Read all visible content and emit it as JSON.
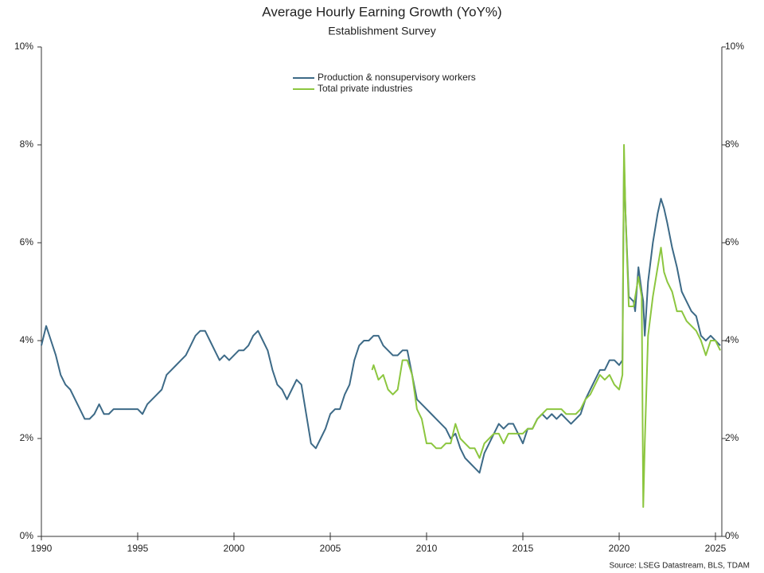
{
  "chart_data": {
    "type": "line",
    "title": "Average Hourly Earning Growth (YoY%)",
    "subtitle": "Establishment Survey",
    "source": "Source: LSEG Datastream, BLS, TDAM",
    "legend": "top-center",
    "xlim": [
      1990,
      2025.33
    ],
    "xticks": [
      1990,
      1995,
      2000,
      2005,
      2010,
      2015,
      2020,
      2025
    ],
    "ylim": [
      0,
      10
    ],
    "yticks": [
      {
        "value": 0,
        "label": "0%"
      },
      {
        "value": 2,
        "label": "2%"
      },
      {
        "value": 4,
        "label": "4%"
      },
      {
        "value": 6,
        "label": "6%"
      },
      {
        "value": 8,
        "label": "8%"
      },
      {
        "value": 10,
        "label": "10%"
      }
    ],
    "y2lim": [
      0,
      10
    ],
    "y2ticks": [
      {
        "value": 0,
        "label": "0%"
      },
      {
        "value": 2,
        "label": "2%"
      },
      {
        "value": 4,
        "label": "4%"
      },
      {
        "value": 6,
        "label": "6%"
      },
      {
        "value": 8,
        "label": "8%"
      },
      {
        "value": 10,
        "label": "10%"
      }
    ],
    "series": [
      {
        "name": "Production & nonsupervisory workers",
        "color": "#3d6a87",
        "x": [
          1990.0,
          1990.25,
          1990.5,
          1990.75,
          1991.0,
          1991.25,
          1991.5,
          1991.75,
          1992.0,
          1992.25,
          1992.5,
          1992.75,
          1993.0,
          1993.25,
          1993.5,
          1993.75,
          1994.0,
          1994.25,
          1994.5,
          1994.75,
          1995.0,
          1995.25,
          1995.5,
          1995.75,
          1996.0,
          1996.25,
          1996.5,
          1996.75,
          1997.0,
          1997.25,
          1997.5,
          1997.75,
          1998.0,
          1998.25,
          1998.5,
          1998.75,
          1999.0,
          1999.25,
          1999.5,
          1999.75,
          2000.0,
          2000.25,
          2000.5,
          2000.75,
          2001.0,
          2001.25,
          2001.5,
          2001.75,
          2002.0,
          2002.25,
          2002.5,
          2002.75,
          2003.0,
          2003.25,
          2003.5,
          2003.75,
          2004.0,
          2004.25,
          2004.5,
          2004.75,
          2005.0,
          2005.25,
          2005.5,
          2005.75,
          2006.0,
          2006.25,
          2006.5,
          2006.75,
          2007.0,
          2007.25,
          2007.5,
          2007.75,
          2008.0,
          2008.25,
          2008.5,
          2008.75,
          2009.0,
          2009.25,
          2009.5,
          2009.75,
          2010.0,
          2010.25,
          2010.5,
          2010.75,
          2011.0,
          2011.25,
          2011.5,
          2011.75,
          2012.0,
          2012.25,
          2012.5,
          2012.75,
          2013.0,
          2013.25,
          2013.5,
          2013.75,
          2014.0,
          2014.25,
          2014.5,
          2014.75,
          2015.0,
          2015.25,
          2015.5,
          2015.75,
          2016.0,
          2016.25,
          2016.5,
          2016.75,
          2017.0,
          2017.25,
          2017.5,
          2017.75,
          2018.0,
          2018.25,
          2018.5,
          2018.75,
          2019.0,
          2019.25,
          2019.5,
          2019.75,
          2020.0,
          2020.17,
          2020.25,
          2020.33,
          2020.5,
          2020.75,
          2020.83,
          2021.0,
          2021.17,
          2021.25,
          2021.33,
          2021.5,
          2021.75,
          2022.0,
          2022.17,
          2022.33,
          2022.5,
          2022.75,
          2023.0,
          2023.25,
          2023.5,
          2023.75,
          2024.0,
          2024.25,
          2024.5,
          2024.75,
          2025.0,
          2025.25
        ],
        "values": [
          3.9,
          4.3,
          4.0,
          3.7,
          3.3,
          3.1,
          3.0,
          2.8,
          2.6,
          2.4,
          2.4,
          2.5,
          2.7,
          2.5,
          2.5,
          2.6,
          2.6,
          2.6,
          2.6,
          2.6,
          2.6,
          2.5,
          2.7,
          2.8,
          2.9,
          3.0,
          3.3,
          3.4,
          3.5,
          3.6,
          3.7,
          3.9,
          4.1,
          4.2,
          4.2,
          4.0,
          3.8,
          3.6,
          3.7,
          3.6,
          3.7,
          3.8,
          3.8,
          3.9,
          4.1,
          4.2,
          4.0,
          3.8,
          3.4,
          3.1,
          3.0,
          2.8,
          3.0,
          3.2,
          3.1,
          2.5,
          1.9,
          1.8,
          2.0,
          2.2,
          2.5,
          2.6,
          2.6,
          2.9,
          3.1,
          3.6,
          3.9,
          4.0,
          4.0,
          4.1,
          4.1,
          3.9,
          3.8,
          3.7,
          3.7,
          3.8,
          3.8,
          3.3,
          2.8,
          2.7,
          2.6,
          2.5,
          2.4,
          2.3,
          2.2,
          2.0,
          2.1,
          1.8,
          1.6,
          1.5,
          1.4,
          1.3,
          1.7,
          1.9,
          2.1,
          2.3,
          2.2,
          2.3,
          2.3,
          2.1,
          1.9,
          2.2,
          2.2,
          2.4,
          2.5,
          2.4,
          2.5,
          2.4,
          2.5,
          2.4,
          2.3,
          2.4,
          2.5,
          2.8,
          3.0,
          3.2,
          3.4,
          3.4,
          3.6,
          3.6,
          3.5,
          3.6,
          7.7,
          6.6,
          4.9,
          4.8,
          4.6,
          5.5,
          5.0,
          4.8,
          4.1,
          5.2,
          6.0,
          6.6,
          6.9,
          6.7,
          6.4,
          5.9,
          5.5,
          5.0,
          4.8,
          4.6,
          4.5,
          4.1,
          4.0,
          4.1,
          4.0,
          3.9
        ]
      },
      {
        "name": "Total private industries",
        "color": "#8cc63f",
        "x": [
          2007.17,
          2007.25,
          2007.5,
          2007.75,
          2008.0,
          2008.25,
          2008.5,
          2008.75,
          2009.0,
          2009.25,
          2009.5,
          2009.75,
          2010.0,
          2010.25,
          2010.5,
          2010.75,
          2011.0,
          2011.25,
          2011.5,
          2011.75,
          2012.0,
          2012.25,
          2012.5,
          2012.75,
          2013.0,
          2013.25,
          2013.5,
          2013.75,
          2014.0,
          2014.25,
          2014.5,
          2014.75,
          2015.0,
          2015.25,
          2015.5,
          2015.75,
          2016.0,
          2016.25,
          2016.5,
          2016.75,
          2017.0,
          2017.25,
          2017.5,
          2017.75,
          2018.0,
          2018.25,
          2018.5,
          2018.75,
          2019.0,
          2019.25,
          2019.5,
          2019.75,
          2020.0,
          2020.17,
          2020.25,
          2020.33,
          2020.5,
          2020.75,
          2021.0,
          2021.17,
          2021.25,
          2021.33,
          2021.5,
          2021.75,
          2022.0,
          2022.17,
          2022.33,
          2022.5,
          2022.75,
          2023.0,
          2023.25,
          2023.5,
          2023.75,
          2024.0,
          2024.25,
          2024.5,
          2024.75,
          2025.0,
          2025.25
        ],
        "values": [
          3.4,
          3.5,
          3.2,
          3.3,
          3.0,
          2.9,
          3.0,
          3.6,
          3.6,
          3.3,
          2.6,
          2.4,
          1.9,
          1.9,
          1.8,
          1.8,
          1.9,
          1.9,
          2.3,
          2.0,
          1.9,
          1.8,
          1.8,
          1.6,
          1.9,
          2.0,
          2.1,
          2.1,
          1.9,
          2.1,
          2.1,
          2.1,
          2.1,
          2.2,
          2.2,
          2.4,
          2.5,
          2.6,
          2.6,
          2.6,
          2.6,
          2.5,
          2.5,
          2.5,
          2.6,
          2.8,
          2.9,
          3.1,
          3.3,
          3.2,
          3.3,
          3.1,
          3.0,
          3.3,
          8.0,
          6.6,
          4.7,
          4.7,
          5.3,
          4.9,
          0.6,
          1.9,
          4.1,
          4.9,
          5.5,
          5.9,
          5.4,
          5.2,
          5.0,
          4.6,
          4.6,
          4.4,
          4.3,
          4.2,
          4.0,
          3.7,
          4.0,
          4.0,
          3.8
        ]
      }
    ]
  }
}
